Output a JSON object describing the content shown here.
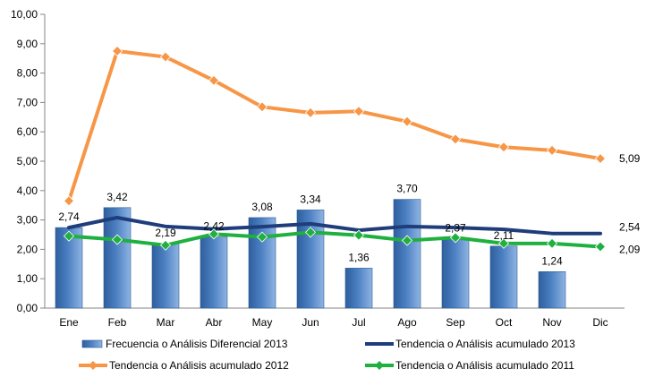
{
  "chart_data": {
    "type": "bar",
    "categories": [
      "Ene",
      "Feb",
      "Mar",
      "Abr",
      "May",
      "Jun",
      "Jul",
      "Ago",
      "Sep",
      "Oct",
      "Nov",
      "Dic"
    ],
    "ylim": [
      0,
      10
    ],
    "yticks": [
      "0,00",
      "1,00",
      "2,00",
      "3,00",
      "4,00",
      "5,00",
      "6,00",
      "7,00",
      "8,00",
      "9,00",
      "10,00"
    ],
    "grid": false,
    "legend_position": "bottom",
    "series": [
      {
        "name": "Frecuencia o Análisis Diferencial 2013",
        "kind": "bar",
        "color": "#4a7fc1",
        "values": [
          2.74,
          3.42,
          2.19,
          2.42,
          3.08,
          3.34,
          1.36,
          3.7,
          2.37,
          2.11,
          1.24,
          null
        ],
        "labels": [
          "2,74",
          "3,42",
          "2,19",
          "2,42",
          "3,08",
          "3,34",
          "1,36",
          "3,70",
          "2,37",
          "2,11",
          "1,24",
          ""
        ]
      },
      {
        "name": "Tendencia o Análisis acumulado 2013",
        "kind": "line",
        "color": "#1f3d7a",
        "marker": "none",
        "values": [
          2.74,
          3.08,
          2.78,
          2.69,
          2.77,
          2.87,
          2.65,
          2.78,
          2.74,
          2.68,
          2.54,
          2.54
        ],
        "end_label": "2,54"
      },
      {
        "name": "Tendencia o Análisis acumulado 2012",
        "kind": "line",
        "color": "#f79646",
        "marker": "diamond",
        "values": [
          3.65,
          8.75,
          8.55,
          7.75,
          6.85,
          6.65,
          6.7,
          6.35,
          5.75,
          5.48,
          5.37,
          5.09
        ],
        "end_label": "5,09"
      },
      {
        "name": "Tendencia o Análisis acumulado 2011",
        "kind": "line",
        "color": "#1fb040",
        "marker": "diamond",
        "values": [
          2.45,
          2.33,
          2.14,
          2.52,
          2.42,
          2.58,
          2.48,
          2.3,
          2.4,
          2.2,
          2.2,
          2.09
        ],
        "end_label": "2,09"
      }
    ]
  }
}
